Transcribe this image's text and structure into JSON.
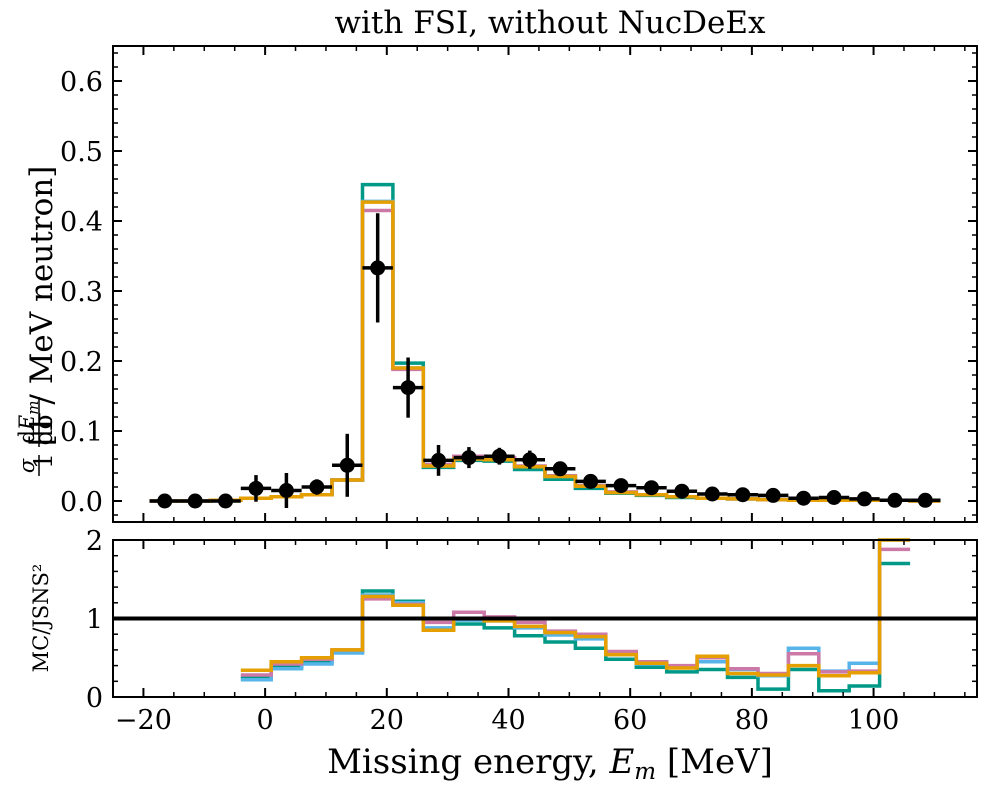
{
  "chart_data": {
    "type": "step",
    "title": "with FSI, without NucDeEx",
    "xlabel": "Missing energy, E_m [MeV]",
    "xlabel_parts": {
      "prefix": "Missing energy, ",
      "var": "E",
      "sub": "m",
      "suffix": " [MeV]"
    },
    "xlim": [
      -25,
      117
    ],
    "xticks": [
      -20,
      0,
      20,
      40,
      60,
      80,
      100
    ],
    "xtick_labels": [
      "−20",
      "0",
      "20",
      "40",
      "60",
      "80",
      "100"
    ],
    "colors": {
      "teal": "#009988",
      "sky": "#56b4e9",
      "pink": "#cc79a7",
      "orange": "#e69f00",
      "data": "#000000"
    },
    "top_panel": {
      "ylabel": "(1/σ) dσ/dE_m [1 / MeV neutron]",
      "ylabel_frac": {
        "num": "1",
        "den": "σ",
        "num2": "dσ",
        "den2_prefix": "d",
        "den2_var": "E",
        "den2_sub": "m"
      },
      "ylabel_unit": "[1 / MeV neutron]",
      "ylim": [
        -0.03,
        0.65
      ],
      "yticks": [
        0.0,
        0.1,
        0.2,
        0.3,
        0.4,
        0.5,
        0.6
      ],
      "ytick_labels": [
        "0.0",
        "0.1",
        "0.2",
        "0.3",
        "0.4",
        "0.5",
        "0.6"
      ],
      "data_points": {
        "name": "JSNS²",
        "x": [
          -16.5,
          -11.5,
          -6.5,
          -1.5,
          3.5,
          8.5,
          13.5,
          18.5,
          23.5,
          28.5,
          33.5,
          38.5,
          43.5,
          48.5,
          53.5,
          58.5,
          63.5,
          68.5,
          73.5,
          78.5,
          83.5,
          88.5,
          93.5,
          98.5,
          103.5,
          108.5
        ],
        "y": [
          0.0,
          0.0,
          0.0,
          0.018,
          0.015,
          0.02,
          0.051,
          0.333,
          0.162,
          0.058,
          0.062,
          0.064,
          0.059,
          0.046,
          0.028,
          0.022,
          0.019,
          0.014,
          0.01,
          0.009,
          0.008,
          0.004,
          0.005,
          0.003,
          0.001,
          0.001
        ],
        "yerr": [
          0.002,
          0.002,
          0.002,
          0.019,
          0.025,
          0.011,
          0.045,
          0.078,
          0.043,
          0.022,
          0.015,
          0.012,
          0.013,
          0.01,
          0.008,
          0.006,
          0.005,
          0.004,
          0.004,
          0.003,
          0.003,
          0.002,
          0.002,
          0.002,
          0.001,
          0.001
        ],
        "xerr": 2.5
      },
      "mc_edges": [
        -19,
        -14,
        -9,
        -4,
        1,
        6,
        11,
        16,
        21,
        26,
        31,
        36,
        41,
        46,
        51,
        56,
        61,
        66,
        71,
        76,
        81,
        86,
        91,
        96,
        101,
        106,
        111
      ],
      "series": [
        {
          "color": "teal",
          "values": [
            0,
            0,
            0.001,
            0.004,
            0.006,
            0.009,
            0.03,
            0.452,
            0.197,
            0.048,
            0.058,
            0.057,
            0.045,
            0.031,
            0.018,
            0.011,
            0.008,
            0.005,
            0.004,
            0.003,
            0.002,
            0.001,
            0.001,
            0.001,
            0.001,
            0.0
          ]
        },
        {
          "color": "sky",
          "values": [
            0,
            0,
            0.001,
            0.004,
            0.006,
            0.009,
            0.03,
            0.428,
            0.19,
            0.05,
            0.06,
            0.06,
            0.049,
            0.035,
            0.021,
            0.012,
            0.009,
            0.006,
            0.004,
            0.003,
            0.002,
            0.001,
            0.001,
            0.001,
            0.001,
            0.0
          ]
        },
        {
          "color": "pink",
          "values": [
            0,
            0,
            0.001,
            0.004,
            0.006,
            0.009,
            0.03,
            0.415,
            0.188,
            0.052,
            0.064,
            0.062,
            0.05,
            0.036,
            0.022,
            0.013,
            0.009,
            0.006,
            0.004,
            0.003,
            0.002,
            0.001,
            0.001,
            0.001,
            0.001,
            0.0
          ]
        },
        {
          "color": "orange",
          "values": [
            0,
            0,
            0.001,
            0.004,
            0.006,
            0.009,
            0.03,
            0.427,
            0.19,
            0.05,
            0.06,
            0.059,
            0.049,
            0.035,
            0.021,
            0.012,
            0.009,
            0.006,
            0.004,
            0.003,
            0.002,
            0.001,
            0.001,
            0.001,
            0.001,
            0.0
          ]
        }
      ]
    },
    "ratio_panel": {
      "ylabel": "MC/JSNS²",
      "ylim": [
        0,
        2
      ],
      "yticks": [
        0,
        1,
        2
      ],
      "ytick_labels": [
        "0",
        "1",
        "2"
      ],
      "reference_line": 1,
      "edges": [
        -4,
        1,
        6,
        11,
        16,
        21,
        26,
        31,
        36,
        41,
        46,
        51,
        56,
        61,
        66,
        71,
        76,
        81,
        86,
        91,
        96,
        101,
        106
      ],
      "series": [
        {
          "color": "teal",
          "values": [
            0.25,
            0.38,
            0.45,
            0.58,
            1.35,
            1.22,
            0.87,
            0.93,
            0.88,
            0.78,
            0.7,
            0.62,
            0.48,
            0.38,
            0.32,
            0.35,
            0.25,
            0.1,
            0.35,
            0.08,
            0.14,
            1.7
          ]
        },
        {
          "color": "sky",
          "values": [
            0.22,
            0.36,
            0.42,
            0.56,
            1.3,
            1.2,
            0.88,
            0.98,
            0.97,
            0.88,
            0.79,
            0.74,
            0.54,
            0.42,
            0.38,
            0.45,
            0.35,
            0.27,
            0.62,
            0.33,
            0.43,
            2.1
          ]
        },
        {
          "color": "pink",
          "values": [
            0.28,
            0.42,
            0.48,
            0.6,
            1.25,
            1.18,
            0.95,
            1.08,
            1.02,
            0.95,
            0.84,
            0.8,
            0.58,
            0.45,
            0.4,
            0.5,
            0.36,
            0.3,
            0.55,
            0.32,
            0.33,
            1.88
          ]
        },
        {
          "color": "orange",
          "values": [
            0.34,
            0.45,
            0.5,
            0.6,
            1.28,
            1.17,
            0.85,
            1.0,
            0.97,
            0.9,
            0.82,
            0.77,
            0.54,
            0.43,
            0.37,
            0.52,
            0.3,
            0.28,
            0.4,
            0.27,
            0.31,
            2.2
          ]
        }
      ]
    }
  }
}
